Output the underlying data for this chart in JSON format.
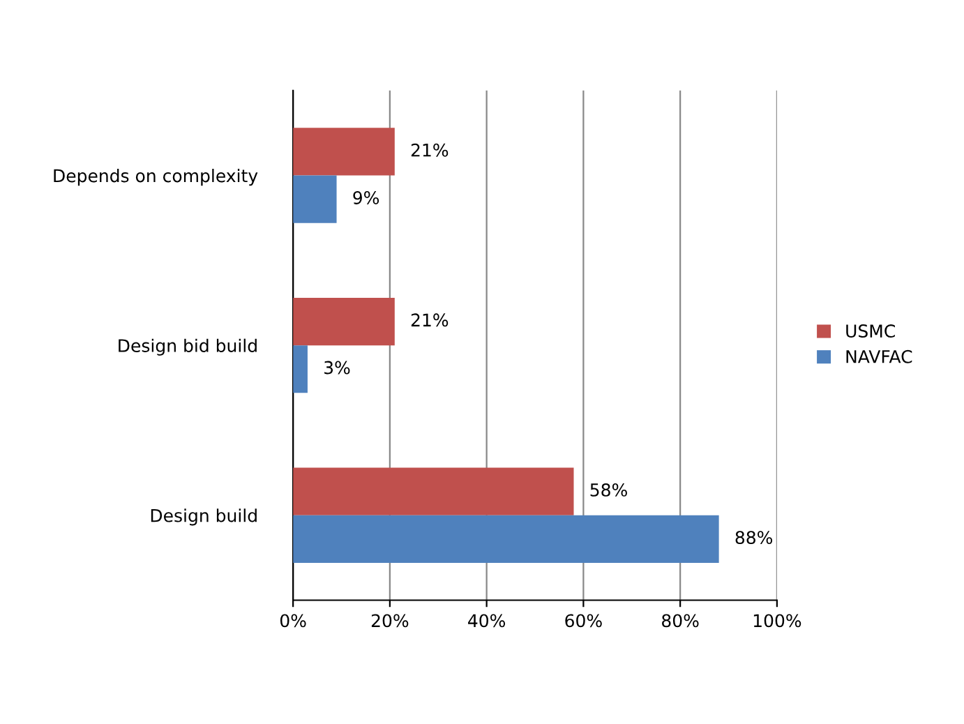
{
  "chart_data": {
    "type": "bar",
    "orientation": "horizontal",
    "categories": [
      "Depends on complexity",
      "Design bid build",
      "Design build"
    ],
    "series": [
      {
        "name": "USMC",
        "color": "#c0504d",
        "values": [
          21,
          21,
          58
        ],
        "value_labels": [
          "21%",
          "21%",
          "58%"
        ]
      },
      {
        "name": "NAVFAC",
        "color": "#4f81bd",
        "values": [
          9,
          3,
          88
        ],
        "value_labels": [
          "9%",
          "3%",
          "88%"
        ]
      }
    ],
    "xlim": [
      0,
      100
    ],
    "xticks": [
      {
        "value": 0,
        "label": "0%"
      },
      {
        "value": 20,
        "label": "20%"
      },
      {
        "value": 40,
        "label": "40%"
      },
      {
        "value": 60,
        "label": "60%"
      },
      {
        "value": 80,
        "label": "80%"
      },
      {
        "value": 100,
        "label": "100%"
      }
    ],
    "grid": "x",
    "legend": "right"
  }
}
